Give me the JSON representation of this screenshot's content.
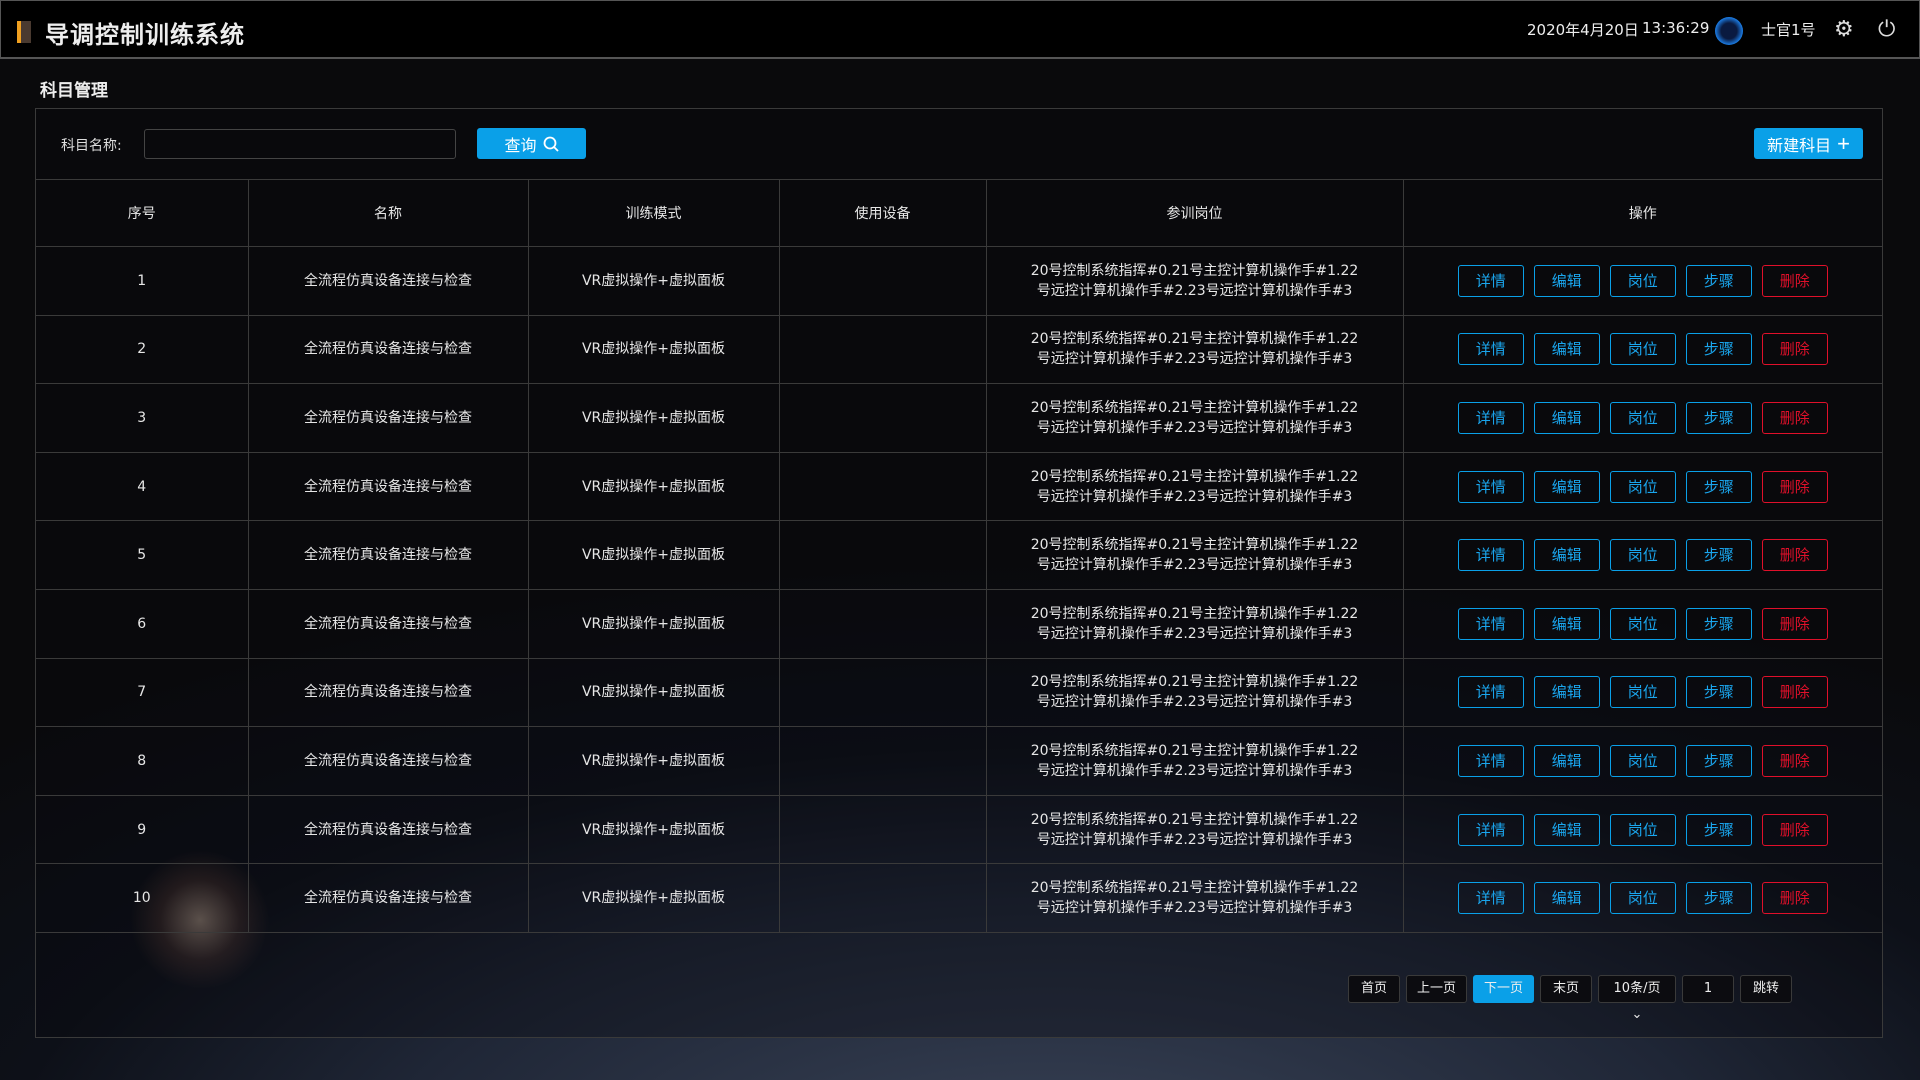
{
  "header": {
    "title": "导调控制训练系统",
    "date": "2020年4月20日",
    "time": "13:36:29",
    "user": "士官1号"
  },
  "page": {
    "section_title": "科目管理"
  },
  "search": {
    "label": "科目名称:",
    "value": "",
    "query_label": "查询",
    "new_label": "新建科目"
  },
  "table": {
    "columns": [
      "序号",
      "名称",
      "训练模式",
      "使用设备",
      "参训岗位",
      "操作"
    ],
    "rows": [
      {
        "no": "1",
        "name": "全流程仿真设备连接与检查",
        "mode": "VR虚拟操作+虚拟面板",
        "device": "",
        "posts": "20号控制系统指挥#0.21号主控计算机操作手#1.22号远控计算机操作手#2.23号远控计算机操作手#3"
      },
      {
        "no": "2",
        "name": "全流程仿真设备连接与检查",
        "mode": "VR虚拟操作+虚拟面板",
        "device": "",
        "posts": "20号控制系统指挥#0.21号主控计算机操作手#1.22号远控计算机操作手#2.23号远控计算机操作手#3"
      },
      {
        "no": "3",
        "name": "全流程仿真设备连接与检查",
        "mode": "VR虚拟操作+虚拟面板",
        "device": "",
        "posts": "20号控制系统指挥#0.21号主控计算机操作手#1.22号远控计算机操作手#2.23号远控计算机操作手#3"
      },
      {
        "no": "4",
        "name": "全流程仿真设备连接与检查",
        "mode": "VR虚拟操作+虚拟面板",
        "device": "",
        "posts": "20号控制系统指挥#0.21号主控计算机操作手#1.22号远控计算机操作手#2.23号远控计算机操作手#3"
      },
      {
        "no": "5",
        "name": "全流程仿真设备连接与检查",
        "mode": "VR虚拟操作+虚拟面板",
        "device": "",
        "posts": "20号控制系统指挥#0.21号主控计算机操作手#1.22号远控计算机操作手#2.23号远控计算机操作手#3"
      },
      {
        "no": "6",
        "name": "全流程仿真设备连接与检查",
        "mode": "VR虚拟操作+虚拟面板",
        "device": "",
        "posts": "20号控制系统指挥#0.21号主控计算机操作手#1.22号远控计算机操作手#2.23号远控计算机操作手#3"
      },
      {
        "no": "7",
        "name": "全流程仿真设备连接与检查",
        "mode": "VR虚拟操作+虚拟面板",
        "device": "",
        "posts": "20号控制系统指挥#0.21号主控计算机操作手#1.22号远控计算机操作手#2.23号远控计算机操作手#3"
      },
      {
        "no": "8",
        "name": "全流程仿真设备连接与检查",
        "mode": "VR虚拟操作+虚拟面板",
        "device": "",
        "posts": "20号控制系统指挥#0.21号主控计算机操作手#1.22号远控计算机操作手#2.23号远控计算机操作手#3"
      },
      {
        "no": "9",
        "name": "全流程仿真设备连接与检查",
        "mode": "VR虚拟操作+虚拟面板",
        "device": "",
        "posts": "20号控制系统指挥#0.21号主控计算机操作手#1.22号远控计算机操作手#2.23号远控计算机操作手#3"
      },
      {
        "no": "10",
        "name": "全流程仿真设备连接与检查",
        "mode": "VR虚拟操作+虚拟面板",
        "device": "",
        "posts": "20号控制系统指挥#0.21号主控计算机操作手#1.22号远控计算机操作手#2.23号远控计算机操作手#3"
      }
    ],
    "actions": [
      "详情",
      "编辑",
      "岗位",
      "步骤",
      "删除"
    ]
  },
  "pagination": {
    "first": "首页",
    "prev": "上一页",
    "next": "下一页",
    "last": "末页",
    "page_size": "10条/页",
    "page_input": "1",
    "jump": "跳转",
    "active": "next"
  },
  "colors": {
    "accent": "#0aa0e8",
    "danger": "#e0102a",
    "logo": "#f0a020"
  }
}
